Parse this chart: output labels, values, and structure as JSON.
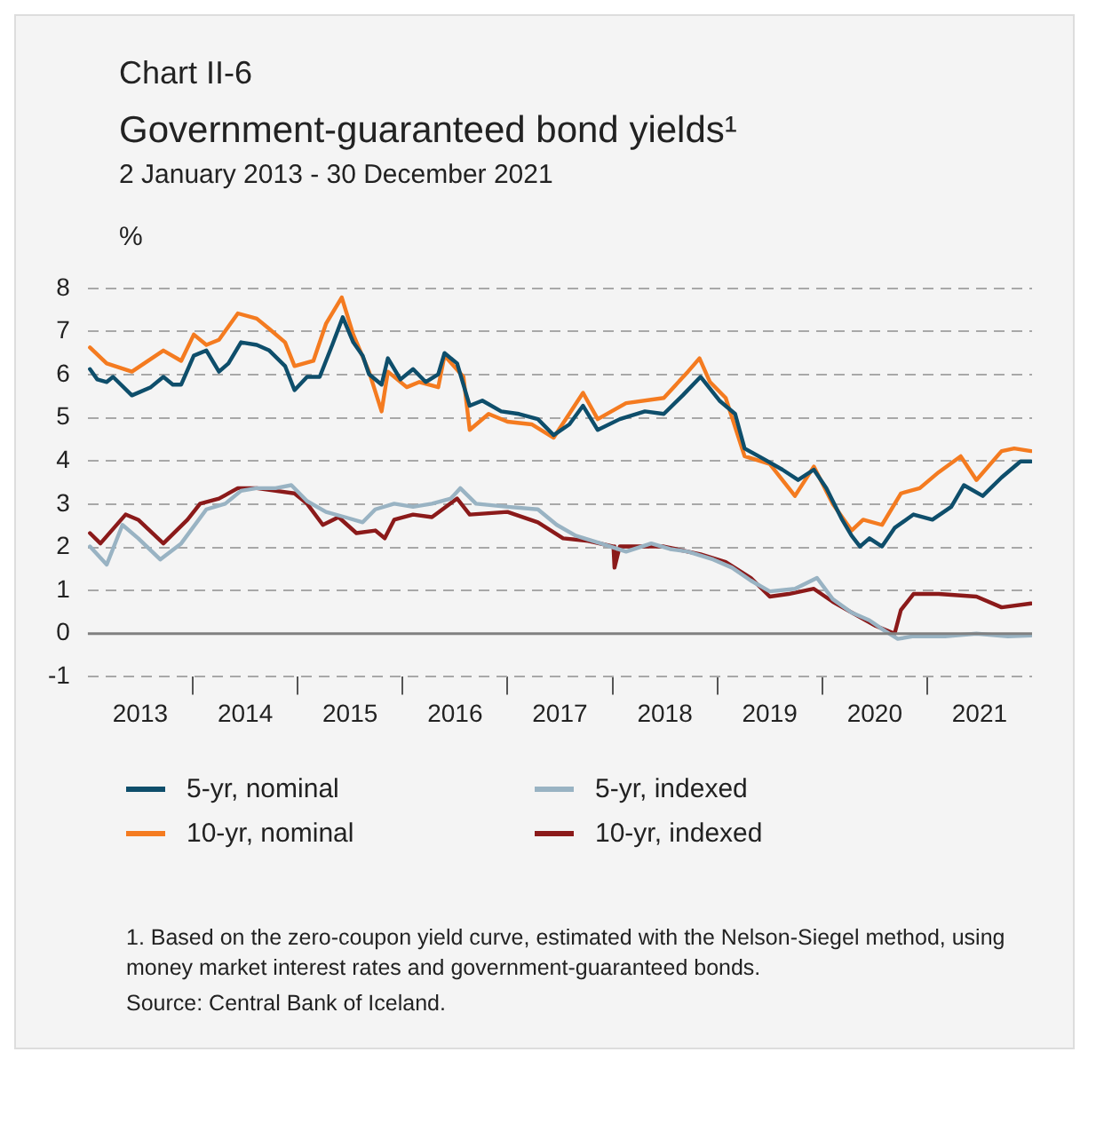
{
  "chart_data": {
    "type": "line",
    "title": "Government-guaranteed bond yields¹",
    "subtitle": "2 January 2013 - 30 December 2021",
    "ylabel": "%",
    "annotations": [
      "Chart II-6",
      "1. Based on the zero-coupon yield curve, estimated with the Nelson-Siegel method, using money market interest rates and government-guaranteed bonds.",
      "Source: Central Bank of Iceland."
    ],
    "xlim": [
      2013,
      2022
    ],
    "xticks": [
      {
        "value": 2013.5,
        "label": "2013"
      },
      {
        "value": 2014,
        "label": null
      },
      {
        "value": 2014.5,
        "label": "2014"
      },
      {
        "value": 2015,
        "label": null
      },
      {
        "value": 2015.5,
        "label": "2015"
      },
      {
        "value": 2016,
        "label": null
      },
      {
        "value": 2016.5,
        "label": "2016"
      },
      {
        "value": 2017,
        "label": null
      },
      {
        "value": 2017.5,
        "label": "2017"
      },
      {
        "value": 2018,
        "label": null
      },
      {
        "value": 2018.5,
        "label": "2018"
      },
      {
        "value": 2019,
        "label": null
      },
      {
        "value": 2019.5,
        "label": "2019"
      },
      {
        "value": 2020,
        "label": null
      },
      {
        "value": 2020.5,
        "label": "2020"
      },
      {
        "value": 2021,
        "label": null
      },
      {
        "value": 2021.5,
        "label": "2021"
      }
    ],
    "ylim": [
      -1,
      8
    ],
    "yticks": [
      -1,
      0,
      1,
      2,
      3,
      4,
      5,
      6,
      7,
      8
    ],
    "grid": "y",
    "legend": "bottom",
    "marker": "none",
    "line_style": "solid",
    "ref_lines": [
      {
        "axis": "y",
        "value": 0,
        "color": "#808080"
      }
    ],
    "series": [
      {
        "name": "5-yr, nominal",
        "color": "#0e4e6b",
        "x": [
          2013.02,
          2013.09,
          2013.18,
          2013.24,
          2013.42,
          2013.6,
          2013.72,
          2013.81,
          2013.89,
          2014.01,
          2014.13,
          2014.25,
          2014.34,
          2014.46,
          2014.61,
          2014.73,
          2014.88,
          2014.97,
          2015.09,
          2015.21,
          2015.33,
          2015.43,
          2015.53,
          2015.62,
          2015.68,
          2015.8,
          2015.86,
          2015.98,
          2016.1,
          2016.22,
          2016.34,
          2016.4,
          2016.52,
          2016.64,
          2016.76,
          2016.94,
          2017.11,
          2017.29,
          2017.44,
          2017.59,
          2017.72,
          2017.86,
          2018.07,
          2018.31,
          2018.49,
          2018.67,
          2018.84,
          2019.02,
          2019.17,
          2019.26,
          2019.44,
          2019.62,
          2019.77,
          2019.92,
          2020.04,
          2020.19,
          2020.28,
          2020.36,
          2020.45,
          2020.57,
          2020.69,
          2020.87,
          2021.05,
          2021.23,
          2021.35,
          2021.53,
          2021.71,
          2021.89,
          2021.99
        ],
        "values": [
          6.13,
          5.89,
          5.83,
          5.95,
          5.52,
          5.71,
          5.95,
          5.77,
          5.77,
          6.44,
          6.56,
          6.07,
          6.26,
          6.75,
          6.69,
          6.56,
          6.2,
          5.64,
          5.95,
          5.95,
          6.69,
          7.33,
          6.75,
          6.44,
          6.01,
          5.77,
          6.38,
          5.89,
          6.13,
          5.83,
          6.01,
          6.5,
          6.26,
          5.28,
          5.4,
          5.15,
          5.09,
          4.97,
          4.6,
          4.85,
          5.28,
          4.72,
          4.97,
          5.15,
          5.09,
          5.52,
          5.95,
          5.4,
          5.09,
          4.29,
          4.05,
          3.8,
          3.56,
          3.8,
          3.37,
          2.64,
          2.27,
          2.02,
          2.21,
          2.02,
          2.45,
          2.76,
          2.64,
          2.94,
          3.44,
          3.19,
          3.62,
          3.99,
          3.99
        ]
      },
      {
        "name": "10-yr, nominal",
        "color": "#f47b20",
        "x": [
          2013.02,
          2013.18,
          2013.42,
          2013.72,
          2013.89,
          2014.01,
          2014.13,
          2014.25,
          2014.43,
          2014.61,
          2014.73,
          2014.88,
          2014.97,
          2015.15,
          2015.27,
          2015.42,
          2015.53,
          2015.68,
          2015.8,
          2015.86,
          2016.04,
          2016.16,
          2016.34,
          2016.4,
          2016.58,
          2016.64,
          2016.82,
          2017.0,
          2017.23,
          2017.44,
          2017.72,
          2017.86,
          2018.13,
          2018.49,
          2018.72,
          2018.83,
          2018.93,
          2019.08,
          2019.26,
          2019.5,
          2019.74,
          2019.92,
          2020.1,
          2020.28,
          2020.39,
          2020.57,
          2020.75,
          2020.93,
          2021.11,
          2021.32,
          2021.47,
          2021.71,
          2021.83,
          2021.99
        ],
        "values": [
          6.63,
          6.26,
          6.07,
          6.56,
          6.32,
          6.93,
          6.69,
          6.81,
          7.42,
          7.3,
          7.06,
          6.75,
          6.2,
          6.32,
          7.18,
          7.79,
          6.93,
          6.07,
          5.15,
          6.07,
          5.71,
          5.83,
          5.71,
          6.44,
          5.95,
          4.72,
          5.09,
          4.91,
          4.85,
          4.54,
          5.58,
          4.97,
          5.34,
          5.46,
          6.07,
          6.38,
          5.83,
          5.46,
          4.11,
          3.93,
          3.19,
          3.87,
          3.01,
          2.39,
          2.64,
          2.52,
          3.25,
          3.37,
          3.74,
          4.11,
          3.56,
          4.23,
          4.29,
          4.23
        ]
      },
      {
        "name": "5-yr, indexed",
        "color": "#99b3c3",
        "x": [
          2013.02,
          2013.18,
          2013.33,
          2013.48,
          2013.69,
          2013.89,
          2014.13,
          2014.31,
          2014.46,
          2014.61,
          2014.79,
          2014.94,
          2015.09,
          2015.27,
          2015.45,
          2015.62,
          2015.74,
          2015.92,
          2016.1,
          2016.28,
          2016.46,
          2016.55,
          2016.7,
          2017.0,
          2017.29,
          2017.47,
          2017.65,
          2017.89,
          2018.13,
          2018.37,
          2018.55,
          2018.72,
          2018.96,
          2019.14,
          2019.32,
          2019.5,
          2019.74,
          2019.95,
          2020.1,
          2020.28,
          2020.45,
          2020.6,
          2020.72,
          2020.87,
          2021.17,
          2021.47,
          2021.77,
          2021.99
        ],
        "values": [
          2.02,
          1.6,
          2.52,
          2.21,
          1.72,
          2.09,
          2.88,
          3.01,
          3.31,
          3.37,
          3.37,
          3.44,
          3.07,
          2.82,
          2.7,
          2.58,
          2.88,
          3.01,
          2.94,
          3.01,
          3.13,
          3.37,
          3.01,
          2.94,
          2.88,
          2.52,
          2.27,
          2.09,
          1.9,
          2.09,
          1.96,
          1.9,
          1.72,
          1.53,
          1.23,
          0.98,
          1.04,
          1.29,
          0.8,
          0.49,
          0.31,
          0.06,
          -0.12,
          -0.06,
          -0.06,
          0,
          -0.06,
          -0.04
        ]
      },
      {
        "name": "10-yr, indexed",
        "color": "#8b1a1a",
        "x": [
          2013.02,
          2013.12,
          2013.36,
          2013.48,
          2013.72,
          2013.95,
          2014.07,
          2014.25,
          2014.43,
          2014.61,
          2014.79,
          2014.97,
          2015.09,
          2015.24,
          2015.39,
          2015.56,
          2015.74,
          2015.83,
          2015.92,
          2016.1,
          2016.28,
          2016.52,
          2016.64,
          2017.0,
          2017.29,
          2017.53,
          2017.77,
          2018.01,
          2018.02,
          2018.07,
          2018.49,
          2018.84,
          2019.08,
          2019.32,
          2019.5,
          2019.68,
          2019.92,
          2020.1,
          2020.28,
          2020.51,
          2020.69,
          2020.75,
          2020.87,
          2021.11,
          2021.47,
          2021.71,
          2021.99
        ],
        "values": [
          2.33,
          2.09,
          2.76,
          2.64,
          2.09,
          2.64,
          3.01,
          3.13,
          3.37,
          3.37,
          3.31,
          3.25,
          3.01,
          2.52,
          2.7,
          2.33,
          2.39,
          2.21,
          2.64,
          2.76,
          2.7,
          3.13,
          2.76,
          2.82,
          2.58,
          2.21,
          2.15,
          2.02,
          1.53,
          2.02,
          2.02,
          1.84,
          1.66,
          1.29,
          0.86,
          0.92,
          1.04,
          0.74,
          0.49,
          0.18,
          0,
          0.55,
          0.92,
          0.92,
          0.86,
          0.61,
          0.7
        ]
      }
    ]
  }
}
